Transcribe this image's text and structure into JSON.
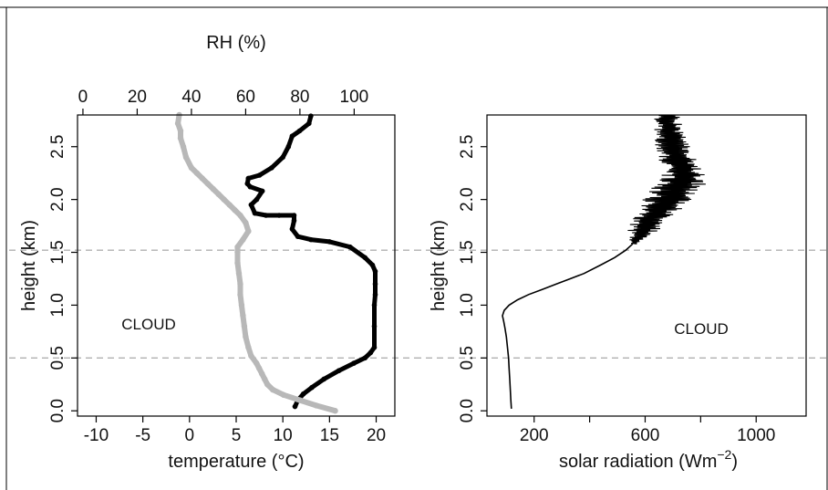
{
  "chart_data": [
    {
      "type": "line",
      "panel": "left",
      "xlabel": "temperature (°C)",
      "x_top_label": "RH (%)",
      "ylabel": "height (km)",
      "xlim": [
        -12,
        22
      ],
      "x_top_lim": [
        -2,
        115
      ],
      "ylim": [
        -0.05,
        2.8
      ],
      "x_ticks": [
        "-10",
        "-5",
        "0",
        "5",
        "10",
        "15",
        "20"
      ],
      "x_top_ticks": [
        "0",
        "20",
        "40",
        "60",
        "80",
        "100"
      ],
      "y_ticks": [
        "0.0",
        "0.5",
        "1.0",
        "1.5",
        "2.0",
        "2.5"
      ],
      "reference_lines_km": [
        0.5,
        1.52
      ],
      "annotation": "CLOUD",
      "series": [
        {
          "axis": "bottom",
          "color": "#000000",
          "x": [
            11.3,
            11.6,
            12.2,
            13.1,
            14.4,
            16.0,
            17.6,
            18.8,
            19.4,
            19.8,
            19.8,
            19.8,
            19.9,
            19.9,
            19.9,
            19.6,
            18.8,
            17.2,
            15.0,
            13.0,
            11.6,
            11.0,
            11.2,
            11.2,
            9.6,
            8.2,
            7.0,
            6.6,
            7.2,
            7.8,
            6.5,
            6.2,
            6.3,
            7.5,
            8.8,
            10.0,
            10.6,
            11.0,
            11.8,
            12.8,
            13.0
          ],
          "y": [
            0.04,
            0.1,
            0.16,
            0.22,
            0.3,
            0.38,
            0.45,
            0.5,
            0.55,
            0.6,
            0.8,
            1.0,
            1.1,
            1.2,
            1.32,
            1.38,
            1.45,
            1.55,
            1.6,
            1.62,
            1.65,
            1.72,
            1.8,
            1.85,
            1.85,
            1.85,
            1.87,
            1.95,
            2.0,
            2.08,
            2.12,
            2.15,
            2.2,
            2.23,
            2.3,
            2.4,
            2.5,
            2.6,
            2.65,
            2.72,
            2.79
          ]
        },
        {
          "axis": "top",
          "color": "#b8b8b8",
          "x": [
            93,
            86,
            80,
            74,
            70,
            68,
            67,
            66,
            65,
            64,
            62,
            61,
            60,
            59.5,
            59,
            58.5,
            58,
            58,
            57.5,
            57,
            57,
            57,
            59,
            61,
            60,
            58,
            56,
            54,
            52,
            50,
            48,
            46,
            44,
            42,
            40,
            38,
            37,
            36,
            36,
            35,
            35.5
          ],
          "y": [
            0.0,
            0.05,
            0.1,
            0.15,
            0.2,
            0.25,
            0.3,
            0.35,
            0.4,
            0.45,
            0.52,
            0.6,
            0.7,
            0.8,
            0.9,
            1.0,
            1.1,
            1.2,
            1.3,
            1.4,
            1.5,
            1.55,
            1.62,
            1.7,
            1.78,
            1.85,
            1.9,
            1.95,
            2.0,
            2.05,
            2.1,
            2.15,
            2.2,
            2.25,
            2.3,
            2.4,
            2.5,
            2.58,
            2.65,
            2.72,
            2.8
          ]
        }
      ]
    },
    {
      "type": "line",
      "panel": "right",
      "xlabel": "solar radiation (Wm",
      "xlabel_superscript": "−2",
      "xlabel_suffix": ")",
      "ylabel": "height (km)",
      "xlim": [
        30,
        1180
      ],
      "ylim": [
        -0.05,
        2.8
      ],
      "x_ticks": [
        "200",
        "600",
        "1000"
      ],
      "x_minor_ticks": [
        400,
        800
      ],
      "y_ticks": [
        "0.0",
        "0.5",
        "1.0",
        "1.5",
        "2.0",
        "2.5"
      ],
      "reference_lines_km": [
        0.5,
        1.52
      ],
      "annotation": "CLOUD",
      "series": [
        {
          "color": "#000000",
          "x": [
            118,
            116,
            114,
            112,
            110,
            108,
            104,
            100,
            95,
            90,
            86,
            92,
            110,
            140,
            180,
            230,
            280,
            330,
            380,
            440,
            490,
            530,
            555
          ],
          "y": [
            0.02,
            0.1,
            0.2,
            0.3,
            0.4,
            0.5,
            0.6,
            0.7,
            0.78,
            0.85,
            0.9,
            0.95,
            1.0,
            1.05,
            1.1,
            1.15,
            1.2,
            1.25,
            1.3,
            1.38,
            1.45,
            1.52,
            1.58
          ]
        }
      ],
      "noisy_region": {
        "y_from": 1.58,
        "y_to": 2.8,
        "center_x": [
          560,
          590,
          620,
          650,
          680,
          720,
          740,
          730,
          720,
          700,
          690,
          680
        ],
        "center_y": [
          1.58,
          1.7,
          1.8,
          1.9,
          2.0,
          2.1,
          2.2,
          2.3,
          2.4,
          2.5,
          2.6,
          2.75
        ],
        "amplitude": [
          15,
          55,
          70,
          80,
          90,
          100,
          90,
          80,
          75,
          65,
          55,
          50
        ]
      }
    }
  ]
}
